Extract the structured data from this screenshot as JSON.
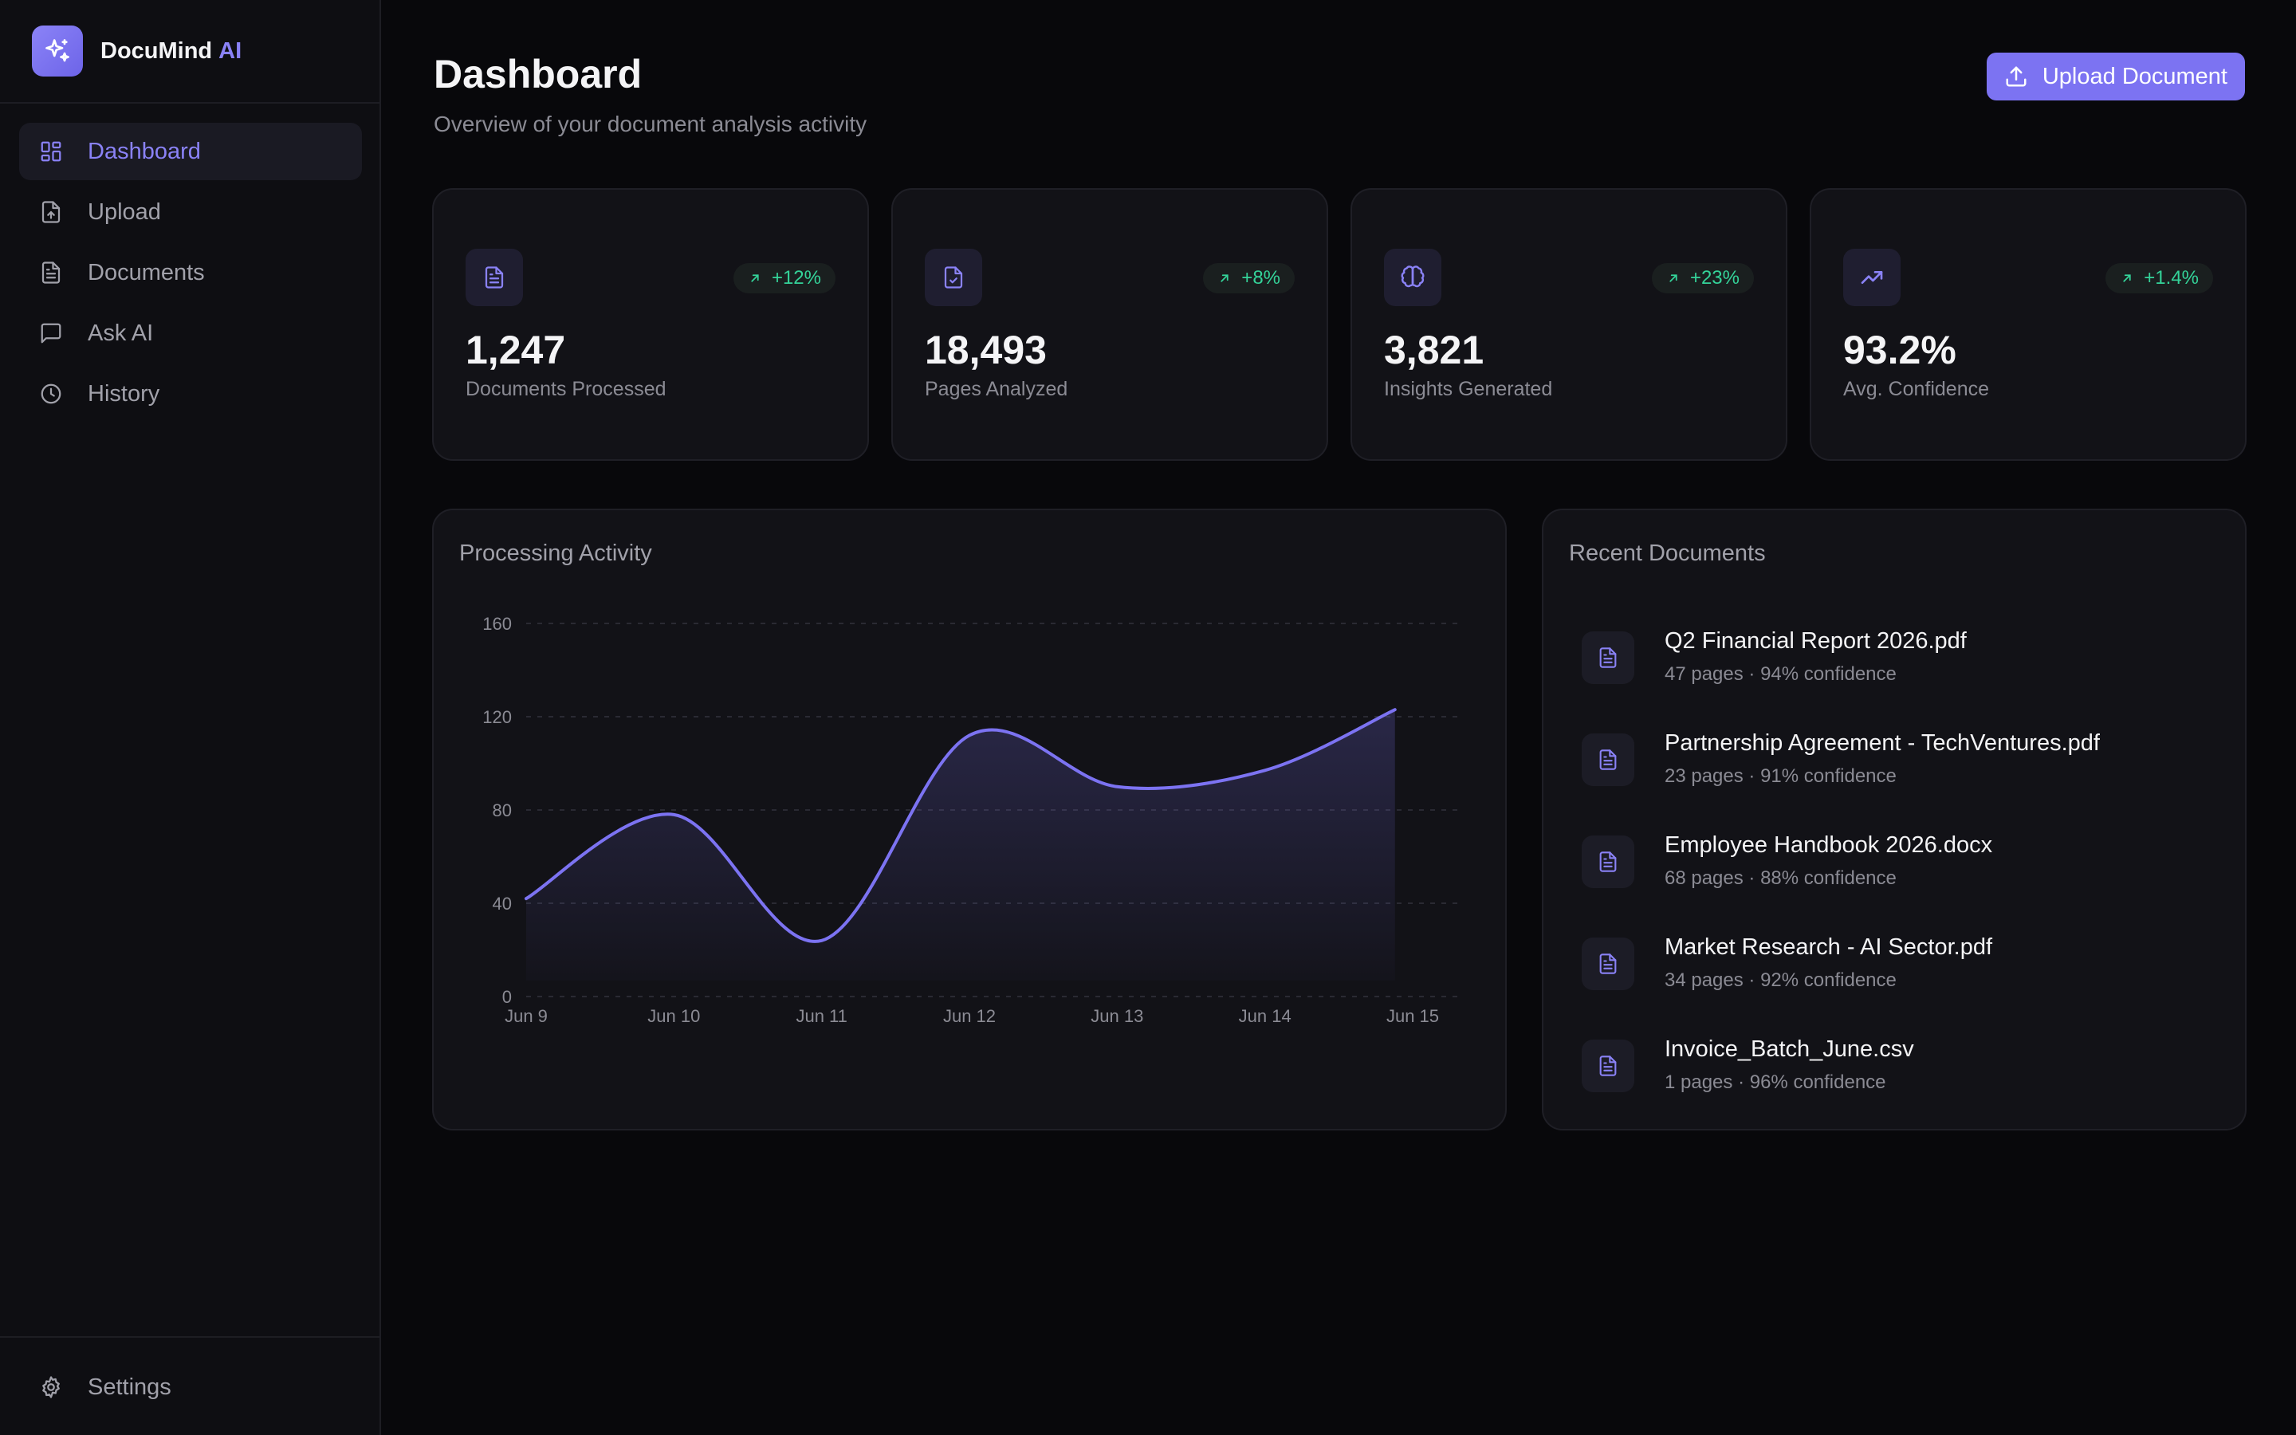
{
  "brand": {
    "name": "DocuMind",
    "suffix": "AI",
    "accent": "#8a82f6"
  },
  "sidebar": {
    "items": [
      {
        "label": "Dashboard",
        "icon": "layout-grid-icon",
        "active": true
      },
      {
        "label": "Upload",
        "icon": "file-upload-icon",
        "active": false
      },
      {
        "label": "Documents",
        "icon": "file-text-icon",
        "active": false
      },
      {
        "label": "Ask AI",
        "icon": "message-square-icon",
        "active": false
      },
      {
        "label": "History",
        "icon": "clock-icon",
        "active": false
      }
    ],
    "settings": {
      "label": "Settings",
      "icon": "gear-icon"
    }
  },
  "header": {
    "title": "Dashboard",
    "subtitle": "Overview of your document analysis activity",
    "upload_button": "Upload Document"
  },
  "stats": [
    {
      "icon": "file-text-icon",
      "badge": "+12%",
      "value": "1,247",
      "label": "Documents Processed"
    },
    {
      "icon": "file-check-icon",
      "badge": "+8%",
      "value": "18,493",
      "label": "Pages Analyzed"
    },
    {
      "icon": "brain-icon",
      "badge": "+23%",
      "value": "3,821",
      "label": "Insights Generated"
    },
    {
      "icon": "trending-up-icon",
      "badge": "+1.4%",
      "value": "93.2%",
      "label": "Avg. Confidence"
    }
  ],
  "activity": {
    "title": "Processing Activity"
  },
  "chart_data": {
    "type": "area",
    "title": "Processing Activity",
    "x": [
      "Jun 9",
      "Jun 10",
      "Jun 11",
      "Jun 12",
      "Jun 13",
      "Jun 14",
      "Jun 15"
    ],
    "series": [
      {
        "values": [
          42,
          78,
          24,
          112,
          90,
          97,
          123
        ]
      }
    ],
    "ylim": [
      0,
      160
    ],
    "yticks": [
      "0",
      "40",
      "80",
      "120",
      "160"
    ],
    "grid": true,
    "color": "#7c73f2"
  },
  "recent": {
    "title": "Recent Documents",
    "items": [
      {
        "name": "Q2 Financial Report 2026.pdf",
        "meta": "47 pages · 94% confidence"
      },
      {
        "name": "Partnership Agreement - TechVentures.pdf",
        "meta": "23 pages · 91% confidence"
      },
      {
        "name": "Employee Handbook 2026.docx",
        "meta": "68 pages · 88% confidence"
      },
      {
        "name": "Market Research - AI Sector.pdf",
        "meta": "34 pages · 92% confidence"
      },
      {
        "name": "Invoice_Batch_June.csv",
        "meta": "1 pages · 96% confidence"
      }
    ]
  }
}
